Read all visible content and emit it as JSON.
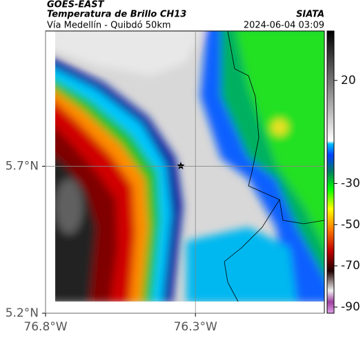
{
  "header": {
    "source": "GOES-EAST",
    "title": "Temperatura de Brillo CH13",
    "subtitle": "Vía Medellín - Quibdó 50km",
    "organization": "SIATA",
    "datetime": "2024-06-04 03:09"
  },
  "map": {
    "lat_lim": [
      5.2,
      6.16
    ],
    "lon_lim": [
      -76.8,
      -75.87
    ],
    "lat_ticks": [
      {
        "value": 5.2,
        "label": "5.2°N"
      },
      {
        "value": 5.7,
        "label": "5.7°N"
      }
    ],
    "lon_ticks": [
      {
        "value": -76.8,
        "label": "76.8°W"
      },
      {
        "value": -76.3,
        "label": "76.3°W"
      }
    ]
  },
  "colorbar": {
    "lim": [
      -93,
      44
    ],
    "ticks": [
      20,
      -30,
      -50,
      -70,
      -90
    ]
  }
}
